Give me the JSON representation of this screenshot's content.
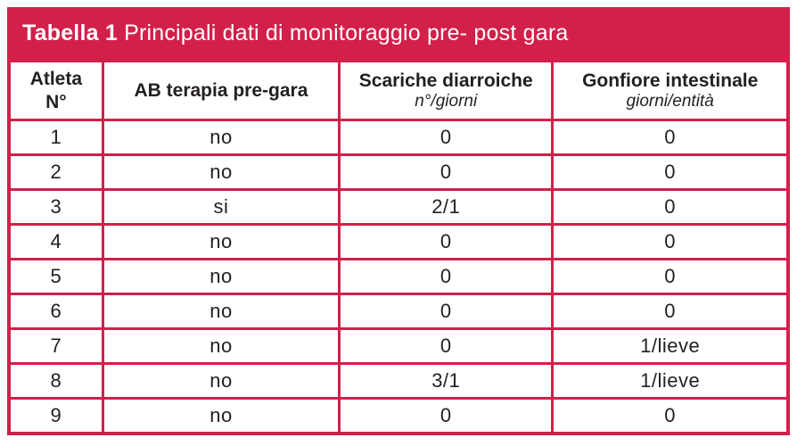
{
  "colors": {
    "accent": "#D2204A",
    "text": "#231F20",
    "title_text": "#FFFFFF"
  },
  "title": {
    "label": "Tabella 1",
    "text": " Principali dati di monitoraggio pre- post gara"
  },
  "table": {
    "columns": [
      {
        "line1": "Atleta",
        "line2": "N°"
      },
      {
        "line1": "AB terapia pre-gara",
        "line2": ""
      },
      {
        "line1": "Scariche diarroiche",
        "line2": "n°/giorni"
      },
      {
        "line1": "Gonfiore intestinale",
        "line2": "giorni/entità"
      }
    ],
    "rows": [
      {
        "atleta": "1",
        "ab_terapia": "no",
        "scariche": "0",
        "gonfiore": "0"
      },
      {
        "atleta": "2",
        "ab_terapia": "no",
        "scariche": "0",
        "gonfiore": "0"
      },
      {
        "atleta": "3",
        "ab_terapia": "si",
        "scariche": "2/1",
        "gonfiore": "0"
      },
      {
        "atleta": "4",
        "ab_terapia": "no",
        "scariche": "0",
        "gonfiore": "0"
      },
      {
        "atleta": "5",
        "ab_terapia": "no",
        "scariche": "0",
        "gonfiore": "0"
      },
      {
        "atleta": "6",
        "ab_terapia": "no",
        "scariche": "0",
        "gonfiore": "0"
      },
      {
        "atleta": "7",
        "ab_terapia": "no",
        "scariche": "0",
        "gonfiore": "1/lieve"
      },
      {
        "atleta": "8",
        "ab_terapia": "no",
        "scariche": "3/1",
        "gonfiore": "1/lieve"
      },
      {
        "atleta": "9",
        "ab_terapia": "no",
        "scariche": "0",
        "gonfiore": "0"
      }
    ]
  }
}
